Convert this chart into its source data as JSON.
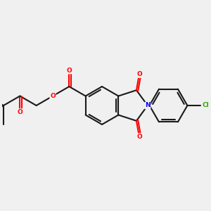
{
  "background_color": "#f0f0f0",
  "bond_color": "#1a1a1a",
  "bond_width": 1.5,
  "atom_colors": {
    "O": "#ff0000",
    "N": "#0000ff",
    "Cl": "#33aa00",
    "C": "#1a1a1a"
  },
  "figsize": [
    3.0,
    3.0
  ],
  "dpi": 100
}
